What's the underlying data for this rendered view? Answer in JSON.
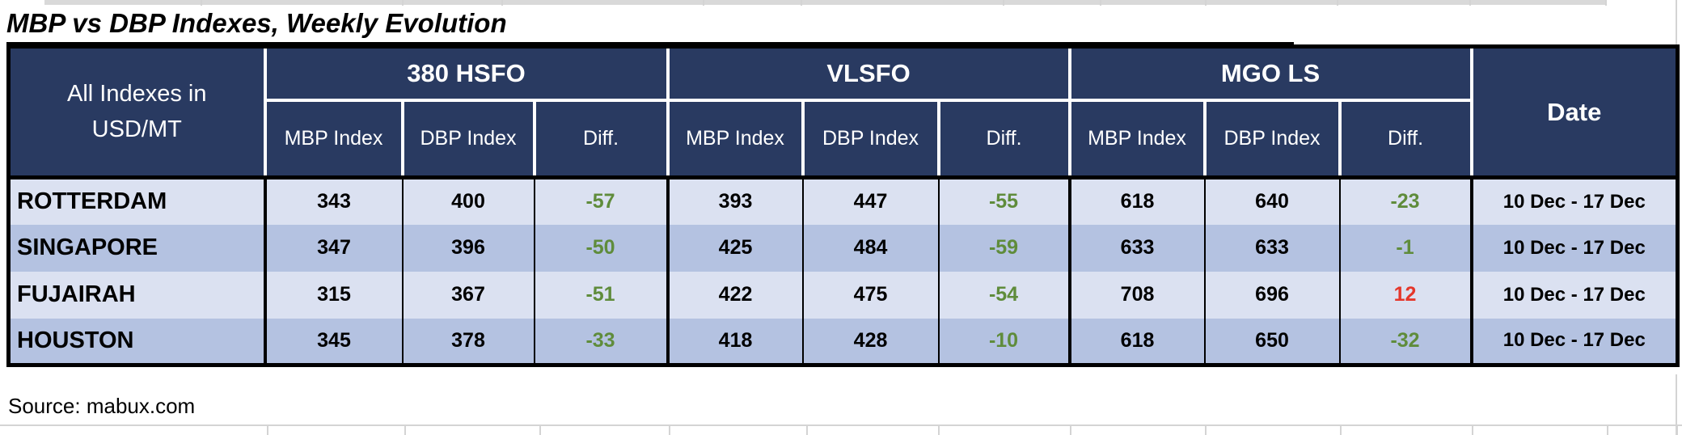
{
  "title": "MBP vs DBP Indexes, Weekly Evolution",
  "source": "Source: mabux.com",
  "colors": {
    "header_navy": "#293A61",
    "row_light": "#DBE1F1",
    "row_dark": "#B4C2E1",
    "diff_negative_green": "#5F8C3B",
    "diff_positive_red": "#E5372B"
  },
  "table": {
    "corner": {
      "line1": "All Indexes in",
      "line2": "USD/MT"
    },
    "groups": [
      "380 HSFO",
      "VLSFO",
      "MGO LS"
    ],
    "subheaders": [
      "MBP Index",
      "DBP Index",
      "Diff."
    ],
    "date_header": "Date",
    "rows": [
      {
        "port": "ROTTERDAM",
        "values": [
          "343",
          "400",
          "-57",
          "393",
          "447",
          "-55",
          "618",
          "640",
          "-23"
        ],
        "date": "10 Dec - 17 Dec"
      },
      {
        "port": "SINGAPORE",
        "values": [
          "347",
          "396",
          "-50",
          "425",
          "484",
          "-59",
          "633",
          "633",
          "-1"
        ],
        "date": "10 Dec - 17 Dec"
      },
      {
        "port": "FUJAIRAH",
        "values": [
          "315",
          "367",
          "-51",
          "422",
          "475",
          "-54",
          "708",
          "696",
          "12"
        ],
        "date": "10 Dec - 17 Dec"
      },
      {
        "port": "HOUSTON",
        "values": [
          "345",
          "378",
          "-33",
          "418",
          "428",
          "-10",
          "618",
          "650",
          "-32"
        ],
        "date": "10 Dec - 17 Dec"
      }
    ]
  },
  "chart_data": {
    "type": "table",
    "title": "MBP vs DBP Indexes, Weekly Evolution",
    "units": "USD/MT",
    "column_groups": [
      "380 HSFO",
      "VLSFO",
      "MGO LS"
    ],
    "columns": [
      "MBP Index",
      "DBP Index",
      "Diff."
    ],
    "rows": [
      {
        "port": "ROTTERDAM",
        "380_hsfo": {
          "mbp": 343,
          "dbp": 400,
          "diff": -57
        },
        "vlsfo": {
          "mbp": 393,
          "dbp": 447,
          "diff": -55
        },
        "mgo_ls": {
          "mbp": 618,
          "dbp": 640,
          "diff": -23
        },
        "date": "10 Dec - 17 Dec"
      },
      {
        "port": "SINGAPORE",
        "380_hsfo": {
          "mbp": 347,
          "dbp": 396,
          "diff": -50
        },
        "vlsfo": {
          "mbp": 425,
          "dbp": 484,
          "diff": -59
        },
        "mgo_ls": {
          "mbp": 633,
          "dbp": 633,
          "diff": -1
        },
        "date": "10 Dec - 17 Dec"
      },
      {
        "port": "FUJAIRAH",
        "380_hsfo": {
          "mbp": 315,
          "dbp": 367,
          "diff": -51
        },
        "vlsfo": {
          "mbp": 422,
          "dbp": 475,
          "diff": -54
        },
        "mgo_ls": {
          "mbp": 708,
          "dbp": 696,
          "diff": 12
        },
        "date": "10 Dec - 17 Dec"
      },
      {
        "port": "HOUSTON",
        "380_hsfo": {
          "mbp": 345,
          "dbp": 378,
          "diff": -33
        },
        "vlsfo": {
          "mbp": 418,
          "dbp": 428,
          "diff": -10
        },
        "mgo_ls": {
          "mbp": 618,
          "dbp": 650,
          "diff": -32
        },
        "date": "10 Dec - 17 Dec"
      }
    ]
  }
}
